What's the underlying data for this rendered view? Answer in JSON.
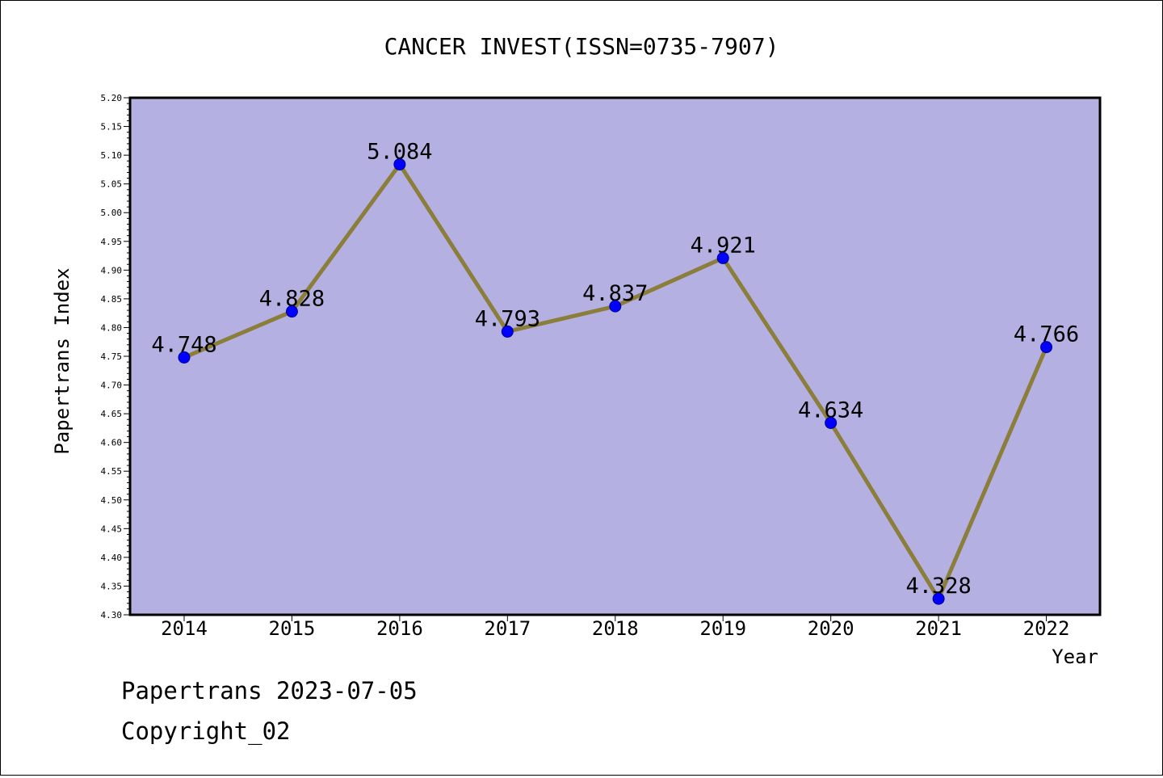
{
  "chart_data": {
    "type": "line",
    "title": "CANCER INVEST(ISSN=0735-7907)",
    "xlabel": "Year",
    "ylabel": "Papertrans Index",
    "categories": [
      "2014",
      "2015",
      "2016",
      "2017",
      "2018",
      "2019",
      "2020",
      "2021",
      "2022"
    ],
    "series": [
      {
        "values": [
          4.748,
          4.828,
          5.084,
          4.793,
          4.837,
          4.921,
          4.634,
          4.328,
          4.766
        ],
        "value_labels": [
          "4.748",
          "4.828",
          "5.084",
          "4.793",
          "4.837",
          "4.921",
          "4.634",
          "4.328",
          "4.766"
        ]
      }
    ],
    "ylim": [
      4.3,
      5.2
    ],
    "ytick_step": 0.05,
    "ytick_labels": [
      "4.30",
      "4.35",
      "4.40",
      "4.45",
      "4.50",
      "4.55",
      "4.60",
      "4.65",
      "4.70",
      "4.75",
      "4.80",
      "4.85",
      "4.90",
      "4.95",
      "5.00",
      "5.05",
      "5.10",
      "5.15",
      "5.20"
    ],
    "grid": false,
    "plot_background": "#b5b0e2",
    "line_color": "#8b7d3a",
    "marker_color": "#0000ff"
  },
  "footer": {
    "line1": "Papertrans 2023-07-05",
    "line2": "Copyright_02"
  }
}
